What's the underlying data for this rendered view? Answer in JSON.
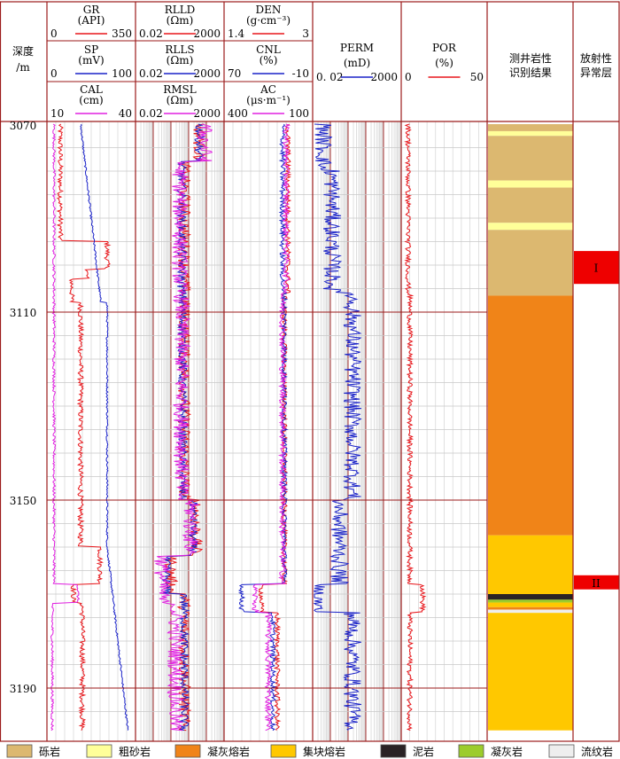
{
  "chart_data": {
    "type": "well-log",
    "depth_label": "深度",
    "depth_unit": "/m",
    "depth_range": [
      3070,
      3199
    ],
    "depth_ticks": [
      3070,
      3110,
      3150,
      3190
    ],
    "tracks": [
      {
        "curves": [
          {
            "name": "GR",
            "unit": "(API)",
            "min": "0",
            "max": "350",
            "color": "#e8161b"
          },
          {
            "name": "SP",
            "unit": "(mV)",
            "min": "0",
            "max": "100",
            "color": "#1a22c8"
          },
          {
            "name": "CAL",
            "unit": "(cm)",
            "min": "10",
            "max": "40",
            "color": "#e020e0"
          }
        ]
      },
      {
        "curves": [
          {
            "name": "RLLD",
            "unit": "(Ωm)",
            "min": "0.02",
            "max": "2000",
            "color": "#e8161b"
          },
          {
            "name": "RLLS",
            "unit": "(Ωm)",
            "min": "0.02",
            "max": "2000",
            "color": "#1a22c8"
          },
          {
            "name": "RMSL",
            "unit": "(Ωm)",
            "min": "0.02",
            "max": "2000",
            "color": "#e020e0"
          }
        ]
      },
      {
        "curves": [
          {
            "name": "DEN",
            "unit": "(g·cm⁻³)",
            "min": "1.4",
            "max": "3",
            "color": "#e8161b"
          },
          {
            "name": "CNL",
            "unit": "(%)",
            "min": "70",
            "max": "-10",
            "color": "#1a22c8"
          },
          {
            "name": "AC",
            "unit": "(μs·m⁻¹)",
            "min": "400",
            "max": "100",
            "color": "#e020e0"
          }
        ]
      },
      {
        "curves": [
          {
            "name": "PERM",
            "unit": "(mD)",
            "min": "0. 02",
            "max": "2000",
            "color": "#1a22c8"
          }
        ]
      },
      {
        "curves": [
          {
            "name": "POR",
            "unit": "(%)",
            "min": "0",
            "max": "50",
            "color": "#e8161b"
          }
        ]
      }
    ],
    "lithology_header": [
      "测井岩性",
      "识别结果"
    ],
    "anomaly_header": [
      "放射性",
      "异常层"
    ],
    "lithology_intervals": [
      {
        "top": 3070,
        "bottom": 3071.5,
        "type": "砾岩"
      },
      {
        "top": 3071.5,
        "bottom": 3072.5,
        "type": "粗砂岩"
      },
      {
        "top": 3072.5,
        "bottom": 3082,
        "type": "砾岩"
      },
      {
        "top": 3082,
        "bottom": 3083.5,
        "type": "粗砂岩"
      },
      {
        "top": 3083.5,
        "bottom": 3091,
        "type": "砾岩"
      },
      {
        "top": 3091,
        "bottom": 3092.5,
        "type": "粗砂岩"
      },
      {
        "top": 3092.5,
        "bottom": 3106.5,
        "type": "砾岩"
      },
      {
        "top": 3106.5,
        "bottom": 3157.5,
        "type": "凝灰熔岩"
      },
      {
        "top": 3157.5,
        "bottom": 3170,
        "type": "集块熔岩"
      },
      {
        "top": 3170,
        "bottom": 3171.2,
        "type": "泥岩"
      },
      {
        "top": 3171.2,
        "bottom": 3171.8,
        "type": "凝灰岩"
      },
      {
        "top": 3171.8,
        "bottom": 3172.8,
        "type": "集块熔岩"
      },
      {
        "top": 3172.8,
        "bottom": 3173.3,
        "type": "凝灰熔岩"
      },
      {
        "top": 3173.3,
        "bottom": 3174,
        "type": "流纹岩"
      },
      {
        "top": 3174,
        "bottom": 3199,
        "type": "集块熔岩"
      }
    ],
    "anomalies": [
      {
        "label": "I",
        "top": 3097,
        "bottom": 3104
      },
      {
        "label": "II",
        "top": 3166,
        "bottom": 3169
      }
    ],
    "legend": [
      {
        "name": "砾岩",
        "color": "#dcb870"
      },
      {
        "name": "粗砂岩",
        "color": "#ffff99"
      },
      {
        "name": "凝灰熔岩",
        "color": "#f08418"
      },
      {
        "name": "集块熔岩",
        "color": "#ffc800"
      },
      {
        "name": "泥岩",
        "color": "#2a2325"
      },
      {
        "name": "凝灰岩",
        "color": "#9ccc2c"
      },
      {
        "name": "流纹岩",
        "color": "#eeeeee"
      }
    ],
    "anomaly_color": "#ee0000",
    "frame_color": "#9b1a1a"
  }
}
